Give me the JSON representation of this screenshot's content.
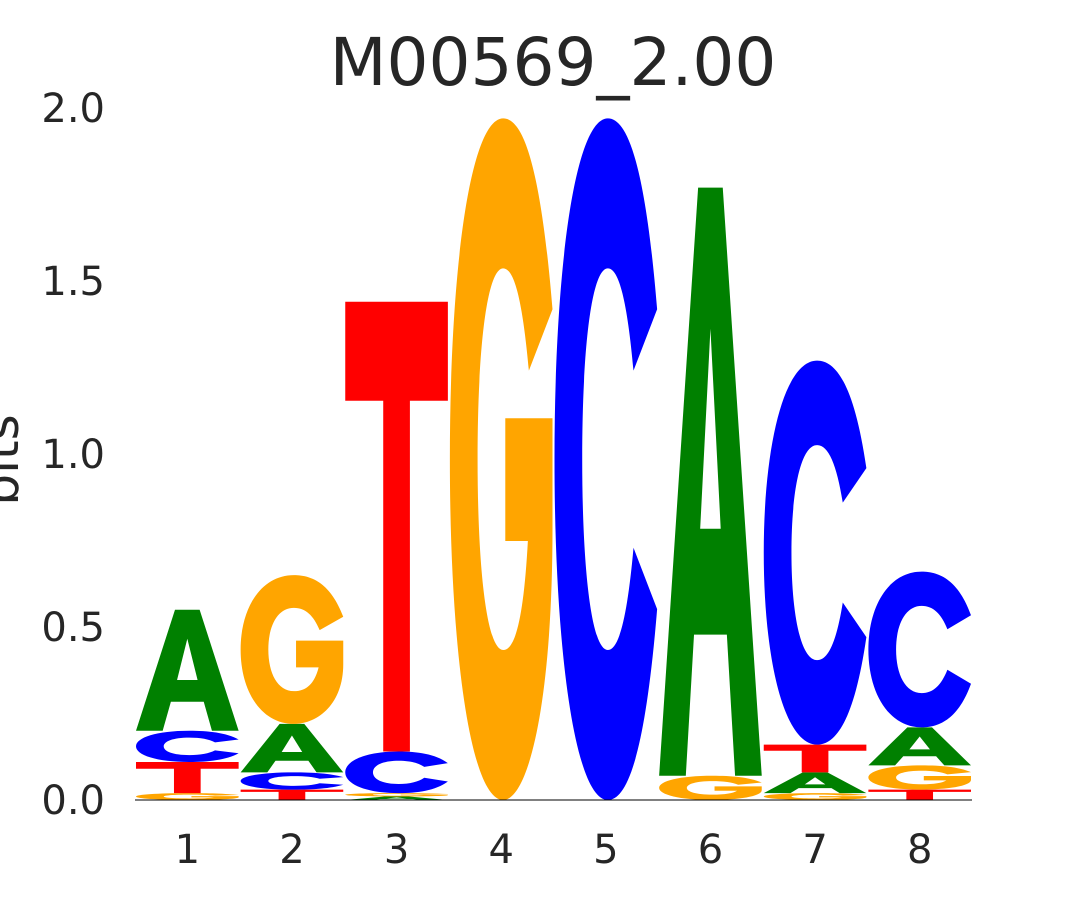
{
  "chart_data": {
    "type": "sequence-logo",
    "title": "M00569_2.00",
    "ylabel": "bits",
    "xlabel": "",
    "ylim": [
      0,
      2.0
    ],
    "yticks": [
      "0.0",
      "0.5",
      "1.0",
      "1.5",
      "2.0"
    ],
    "positions": [
      "1",
      "2",
      "3",
      "4",
      "5",
      "6",
      "7",
      "8"
    ],
    "colors": {
      "A": "#008000",
      "C": "#0000ff",
      "G": "#ffa500",
      "T": "#ff0000"
    },
    "stacks": [
      [
        {
          "letter": "G",
          "bits": 0.02
        },
        {
          "letter": "T",
          "bits": 0.09
        },
        {
          "letter": "C",
          "bits": 0.09
        },
        {
          "letter": "A",
          "bits": 0.35
        }
      ],
      [
        {
          "letter": "T",
          "bits": 0.03
        },
        {
          "letter": "C",
          "bits": 0.05
        },
        {
          "letter": "A",
          "bits": 0.14
        },
        {
          "letter": "G",
          "bits": 0.43
        }
      ],
      [
        {
          "letter": "A",
          "bits": 0.01
        },
        {
          "letter": "G",
          "bits": 0.01
        },
        {
          "letter": "C",
          "bits": 0.12
        },
        {
          "letter": "T",
          "bits": 1.3
        }
      ],
      [
        {
          "letter": "G",
          "bits": 1.97
        }
      ],
      [
        {
          "letter": "C",
          "bits": 1.97
        }
      ],
      [
        {
          "letter": "G",
          "bits": 0.07
        },
        {
          "letter": "A",
          "bits": 1.7
        }
      ],
      [
        {
          "letter": "G",
          "bits": 0.02
        },
        {
          "letter": "A",
          "bits": 0.06
        },
        {
          "letter": "T",
          "bits": 0.08
        },
        {
          "letter": "C",
          "bits": 1.11
        }
      ],
      [
        {
          "letter": "T",
          "bits": 0.03
        },
        {
          "letter": "G",
          "bits": 0.07
        },
        {
          "letter": "A",
          "bits": 0.11
        },
        {
          "letter": "C",
          "bits": 0.45
        }
      ]
    ]
  }
}
